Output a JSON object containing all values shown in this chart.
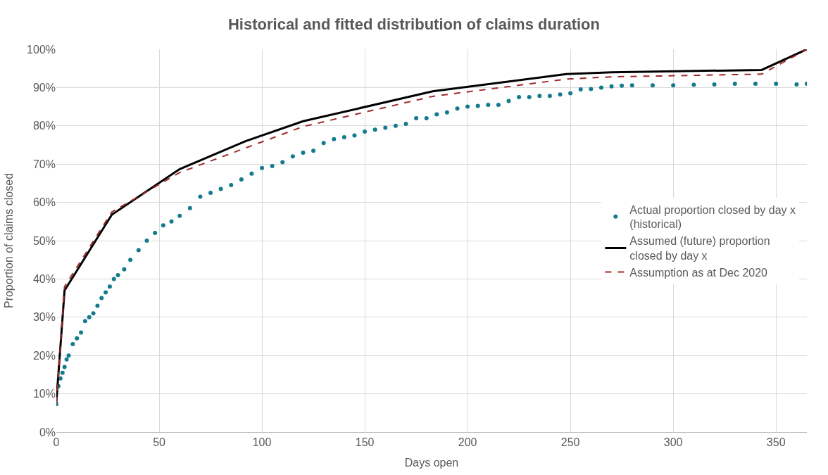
{
  "chart_data": {
    "type": "line",
    "title": "Historical and fitted distribution of claims duration",
    "xlabel": "Days open",
    "ylabel": "Proportion of claims closed",
    "xlim": [
      0,
      365
    ],
    "xticks": [
      0,
      50,
      100,
      150,
      200,
      250,
      300,
      350
    ],
    "ylim": [
      0,
      100
    ],
    "yticks": [
      {
        "value": 0,
        "label": "0%"
      },
      {
        "value": 10,
        "label": "10%"
      },
      {
        "value": 20,
        "label": "20%"
      },
      {
        "value": 30,
        "label": "30%"
      },
      {
        "value": 40,
        "label": "40%"
      },
      {
        "value": 50,
        "label": "50%"
      },
      {
        "value": 60,
        "label": "60%"
      },
      {
        "value": 70,
        "label": "70%"
      },
      {
        "value": 80,
        "label": "80%"
      },
      {
        "value": 90,
        "label": "90%"
      },
      {
        "value": 100,
        "label": "100%"
      }
    ],
    "grid": true,
    "legend": "right",
    "series": [
      {
        "name": "Actual proportion closed by day x (historical)",
        "type": "scatter",
        "marker": "circle",
        "color": "#137b8c",
        "x": [
          0,
          1,
          2,
          3,
          4,
          5,
          6,
          8,
          10,
          12,
          14,
          16,
          18,
          20,
          22,
          24,
          26,
          28,
          30,
          33,
          36,
          40,
          44,
          48,
          52,
          56,
          60,
          65,
          70,
          75,
          80,
          85,
          90,
          95,
          100,
          105,
          110,
          115,
          120,
          125,
          130,
          135,
          140,
          145,
          150,
          155,
          160,
          165,
          170,
          175,
          180,
          185,
          190,
          195,
          200,
          205,
          210,
          215,
          220,
          225,
          230,
          235,
          240,
          245,
          250,
          255,
          260,
          265,
          270,
          275,
          280,
          290,
          300,
          310,
          320,
          330,
          340,
          350,
          360,
          365
        ],
        "values": [
          7.3,
          12,
          14,
          15.5,
          17,
          19,
          20,
          23,
          24.5,
          26,
          29,
          30,
          31,
          33,
          35,
          36.5,
          38,
          40,
          41,
          42.5,
          45,
          47.5,
          50,
          52,
          54,
          55,
          56.5,
          58.5,
          61.5,
          62.5,
          63.5,
          64.5,
          66,
          67.5,
          69,
          69.5,
          70.5,
          72,
          73,
          73.5,
          75.5,
          76.5,
          77,
          77.5,
          78.5,
          79,
          79.5,
          80,
          80.5,
          82,
          82,
          83,
          83.5,
          84.5,
          85,
          85.2,
          85.5,
          85.5,
          86.5,
          87.5,
          87.5,
          87.8,
          87.8,
          88.2,
          88.5,
          89.5,
          89.6,
          90,
          90.3,
          90.5,
          90.6,
          90.6,
          90.6,
          90.7,
          90.8,
          91,
          91,
          91,
          90.8,
          91
        ]
      },
      {
        "name": "Assumed (future) proportion closed by day x",
        "line_style": "solid",
        "color": "#000000",
        "x": [
          0,
          4,
          27,
          60,
          92,
          120,
          183,
          248,
          270,
          343,
          365
        ],
        "values": [
          7.8,
          37,
          56.8,
          68.7,
          76,
          81.2,
          89,
          93.5,
          94,
          94.6,
          100
        ]
      },
      {
        "name": "Assumption as at Dec 2020",
        "line_style": "dashed",
        "color": "#a02b2b",
        "x": [
          0,
          4,
          27,
          60,
          120,
          183,
          248,
          270,
          343,
          365
        ],
        "values": [
          7.5,
          38,
          57.5,
          67.8,
          79.8,
          87.7,
          92.2,
          92.8,
          93.5,
          100
        ]
      }
    ]
  }
}
